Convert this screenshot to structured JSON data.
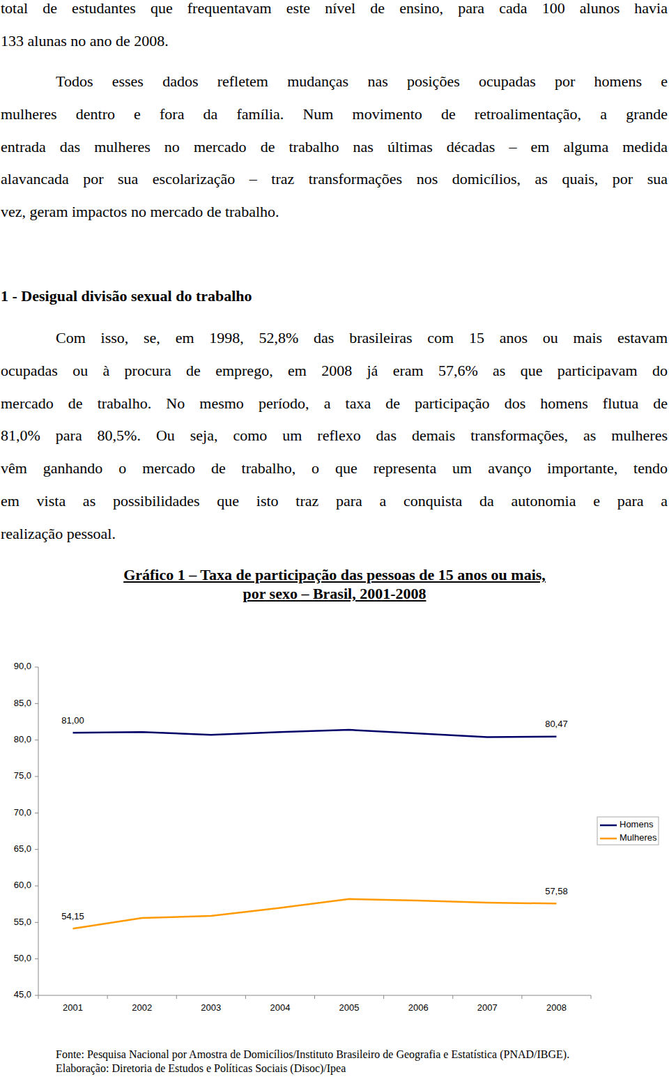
{
  "paragraphs": [
    [
      "total de estudantes que frequentavam este nível de ensino, para cada 100 alunos havia",
      "133 alunas no ano de 2008."
    ],
    [
      "Todos esses dados refletem mudanças nas posições ocupadas por homens e",
      "mulheres dentro e fora da família. Num movimento de retroalimentação, a grande",
      "entrada das mulheres no mercado de trabalho nas últimas décadas – em alguma medida",
      "alavancada por sua escolarização – traz transformações nos domicílios, as quais, por sua",
      "vez, geram impactos no mercado de trabalho."
    ]
  ],
  "section": {
    "heading": "1 - Desigual divisão sexual do trabalho",
    "paragraphs": [
      [
        "Com isso, se, em 1998, 52,8% das brasileiras com 15 anos ou mais estavam",
        "ocupadas ou à procura de emprego, em 2008 já eram 57,6% as que participavam do",
        "mercado de trabalho. No mesmo período, a taxa de participação dos homens flutua de",
        "81,0% para 80,5%. Ou seja, como um reflexo das demais transformações, as mulheres",
        "vêm ganhando o mercado de trabalho, o que representa um avanço importante, tendo",
        "em vista as possibilidades que isto traz para a conquista da autonomia e para a",
        "realização pessoal."
      ]
    ]
  },
  "chart_data": {
    "type": "line",
    "title": "Gráfico 1 – Taxa de participação das pessoas de 15 anos ou mais,",
    "subtitle": "por sexo – Brasil, 2001-2008",
    "categories": [
      "2001",
      "2002",
      "2003",
      "2004",
      "2005",
      "2006",
      "2007",
      "2008"
    ],
    "series": [
      {
        "name": "Homens",
        "color": "#000066",
        "values": [
          81.0,
          81.1,
          80.7,
          81.1,
          81.4,
          80.9,
          80.4,
          80.47
        ],
        "value_labels": [
          "81,00",
          null,
          null,
          null,
          null,
          null,
          null,
          "80,47"
        ]
      },
      {
        "name": "Mulheres",
        "color": "#ff9900",
        "values": [
          54.15,
          55.6,
          55.9,
          57.0,
          58.2,
          58.0,
          57.7,
          57.58
        ],
        "value_labels": [
          "54,15",
          null,
          null,
          null,
          null,
          null,
          null,
          "57,58"
        ]
      }
    ],
    "ylim": [
      45,
      90
    ],
    "yticks": [
      {
        "value": 45,
        "label": "45,0"
      },
      {
        "value": 50,
        "label": "50,0"
      },
      {
        "value": 55,
        "label": "55,0"
      },
      {
        "value": 60,
        "label": "60,0"
      },
      {
        "value": 65,
        "label": "65,0"
      },
      {
        "value": 70,
        "label": "70,0"
      },
      {
        "value": 75,
        "label": "75,0"
      },
      {
        "value": 80,
        "label": "80,0"
      },
      {
        "value": 85,
        "label": "85,0"
      },
      {
        "value": 90,
        "label": "90,0"
      }
    ],
    "grid": false,
    "legend": "right",
    "data_labels": true
  },
  "source": "Fonte: Pesquisa Nacional por Amostra de Domicílios/Instituto Brasileiro de Geografia e Estatística (PNAD/IBGE).",
  "credit": "Elaboração: Diretoria de Estudos e Políticas Sociais (Disoc)/Ipea"
}
